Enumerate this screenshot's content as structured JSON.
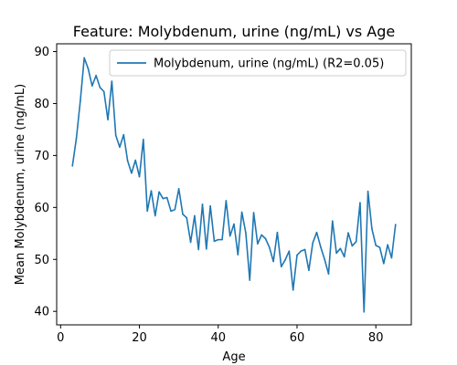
{
  "chart_data": {
    "type": "line",
    "title": "Feature: Molybdenum, urine (ng/mL) vs Age",
    "xlabel": "Age",
    "ylabel": "Mean Molybdenum, urine (ng/mL)",
    "xlim": [
      -1,
      89
    ],
    "ylim": [
      37.4,
      91.5
    ],
    "xticks": [
      0,
      20,
      40,
      60,
      80
    ],
    "yticks": [
      40,
      50,
      60,
      70,
      80,
      90
    ],
    "grid": false,
    "legend_position": "top-right",
    "series": [
      {
        "name": "Molybdenum, urine (ng/mL) (R2=0.05)",
        "color": "#1f77b4",
        "x": [
          3,
          4,
          5,
          6,
          7,
          8,
          9,
          10,
          11,
          12,
          13,
          14,
          15,
          16,
          17,
          18,
          19,
          20,
          21,
          22,
          23,
          24,
          25,
          26,
          27,
          28,
          29,
          30,
          31,
          32,
          33,
          34,
          35,
          36,
          37,
          38,
          39,
          40,
          41,
          42,
          43,
          44,
          45,
          46,
          47,
          48,
          49,
          50,
          51,
          52,
          53,
          54,
          55,
          56,
          57,
          58,
          59,
          60,
          61,
          62,
          63,
          64,
          65,
          66,
          67,
          68,
          69,
          70,
          71,
          72,
          73,
          74,
          75,
          76,
          77,
          78,
          79,
          80,
          81,
          82,
          83,
          84,
          85
        ],
        "y": [
          68.0,
          73.3,
          80.5,
          88.8,
          86.7,
          83.4,
          85.4,
          83.1,
          82.3,
          76.9,
          84.3,
          73.9,
          71.6,
          74.0,
          69.0,
          66.6,
          69.1,
          65.9,
          73.1,
          59.3,
          63.2,
          58.4,
          63.0,
          61.7,
          61.9,
          59.3,
          59.6,
          63.6,
          58.7,
          58.0,
          53.3,
          58.4,
          51.9,
          60.6,
          52.0,
          60.3,
          53.5,
          53.8,
          53.8,
          61.3,
          54.5,
          56.8,
          50.9,
          59.1,
          55.1,
          46.0,
          59.0,
          53.0,
          54.7,
          54.0,
          52.3,
          49.6,
          55.2,
          48.6,
          49.9,
          51.6,
          44.1,
          50.8,
          51.6,
          51.9,
          47.9,
          53.2,
          55.2,
          52.4,
          50.0,
          47.2,
          57.4,
          51.2,
          52.1,
          50.5,
          55.1,
          52.6,
          53.4,
          60.9,
          39.9,
          63.1,
          55.9,
          52.7,
          52.3,
          49.2,
          52.8,
          50.3,
          56.7
        ]
      }
    ]
  }
}
